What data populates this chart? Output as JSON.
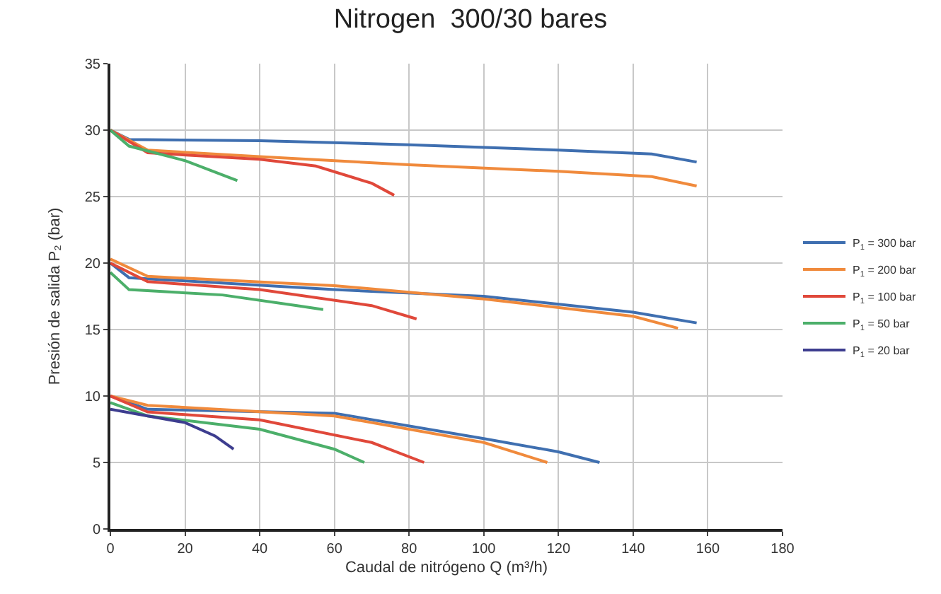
{
  "chart_data": {
    "type": "line",
    "title": "Nitrogen  300/30 bares",
    "xlabel": "Caudal de nitrógeno Q (m³/h)",
    "ylabel": "Presión de salida P₂ (bar)",
    "xlim": [
      0,
      180
    ],
    "xticks": [
      0,
      20,
      40,
      60,
      80,
      100,
      120,
      140,
      160,
      180
    ],
    "ylim": [
      0,
      35
    ],
    "yticks": [
      0,
      5,
      10,
      15,
      20,
      25,
      30,
      35
    ],
    "grid": true,
    "legend": "right",
    "marker": "none",
    "line_style": "solid",
    "series": [
      {
        "name": "P$_{1}$ = 300 bar",
        "color": "#3f6fb0",
        "x": [
          0,
          5,
          40,
          80,
          120,
          145,
          157,
          null,
          0,
          5,
          60,
          100,
          140,
          157,
          null,
          0,
          10,
          60,
          100,
          120,
          131
        ],
        "values": [
          30,
          29.3,
          29.2,
          28.9,
          28.5,
          28.2,
          27.6,
          null,
          20,
          18.9,
          18,
          17.5,
          16.3,
          15.5,
          null,
          10,
          9,
          8.7,
          6.8,
          5.8,
          5
        ]
      },
      {
        "name": "P$_{1}$ = 200 bar",
        "color": "#f08a3c",
        "x": [
          0,
          10,
          40,
          80,
          120,
          145,
          157,
          null,
          0,
          10,
          60,
          100,
          140,
          152,
          null,
          0,
          10,
          60,
          100,
          117
        ],
        "values": [
          30,
          28.5,
          28,
          27.4,
          26.9,
          26.5,
          25.8,
          null,
          20.3,
          19,
          18.3,
          17.3,
          16,
          15.1,
          null,
          10,
          9.3,
          8.5,
          6.5,
          5
        ]
      },
      {
        "name": "P$_{1}$ = 100 bar",
        "color": "#e0483a",
        "x": [
          0,
          10,
          40,
          55,
          70,
          76,
          null,
          0,
          10,
          40,
          70,
          82,
          null,
          0,
          10,
          40,
          70,
          84
        ],
        "values": [
          30,
          28.3,
          27.8,
          27.3,
          26,
          25.1,
          null,
          20,
          18.6,
          18,
          16.8,
          15.8,
          null,
          10,
          8.8,
          8.2,
          6.5,
          5
        ]
      },
      {
        "name": "P$_{1}$ = 50 bar",
        "color": "#4caf6a",
        "x": [
          0,
          5,
          20,
          34,
          null,
          0,
          5,
          30,
          50,
          57,
          null,
          0,
          10,
          40,
          60,
          68
        ],
        "values": [
          30,
          28.8,
          27.7,
          26.2,
          null,
          19.3,
          18,
          17.6,
          16.8,
          16.5,
          null,
          9.5,
          8.5,
          7.5,
          6,
          5
        ]
      },
      {
        "name": "P$_{1}$ = 20 bar",
        "color": "#3d3d8f",
        "x": [
          0,
          10,
          20,
          28,
          33
        ],
        "values": [
          9,
          8.5,
          8,
          7,
          6
        ]
      }
    ]
  }
}
